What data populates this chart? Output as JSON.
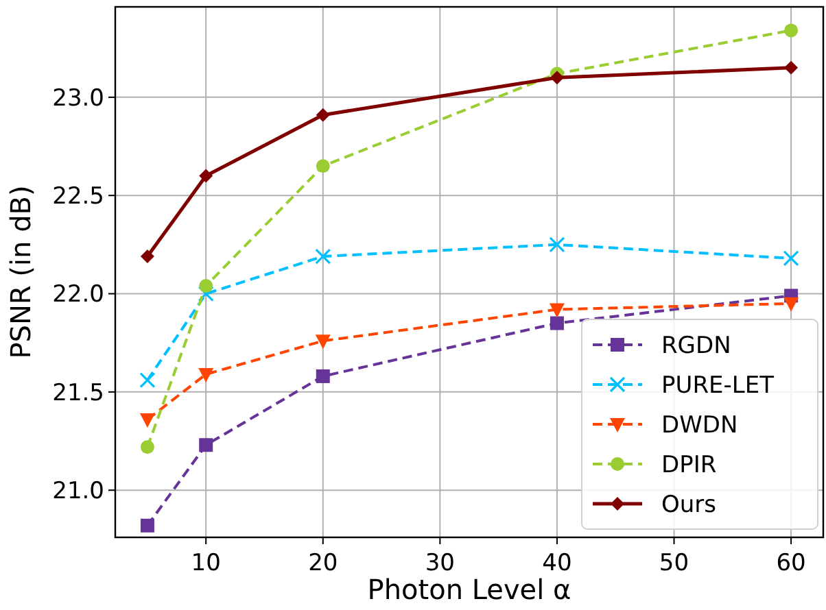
{
  "chart_data": {
    "type": "line",
    "xlabel": "Photon Level α",
    "ylabel": "PSNR (in dB)",
    "x": [
      5,
      10,
      20,
      40,
      60
    ],
    "xlim": [
      2.25,
      62.75
    ],
    "xticks": [
      10,
      20,
      30,
      40,
      50,
      60
    ],
    "ylim": [
      20.76,
      23.46
    ],
    "yticks": [
      {
        "value": 21,
        "label": "21.0"
      },
      21.5,
      {
        "value": 22,
        "label": "22.0"
      },
      22.5,
      {
        "value": 23,
        "label": "23.0"
      }
    ],
    "grid": true,
    "legend": "bottom right",
    "series": [
      {
        "name": "RGDN",
        "color": "#663399",
        "marker": "square",
        "line_style": "dashed",
        "values": [
          20.82,
          21.23,
          21.58,
          21.85,
          21.99
        ]
      },
      {
        "name": "PURE-LET",
        "color": "#00bfff",
        "marker": "cross",
        "line_style": "dashed",
        "values": [
          21.56,
          22.0,
          22.19,
          22.25,
          22.18
        ]
      },
      {
        "name": "DWDN",
        "color": "#ff4500",
        "marker": "triangle",
        "line_style": "dashed",
        "values": [
          21.36,
          21.59,
          21.76,
          21.92,
          21.95
        ]
      },
      {
        "name": "DPIR",
        "color": "#9acd32",
        "marker": "circle",
        "line_style": "dashed",
        "values": [
          21.22,
          22.04,
          22.65,
          23.12,
          23.34
        ]
      },
      {
        "name": "Ours",
        "color": "#800000",
        "marker": "diamond",
        "line_style": "solid",
        "values": [
          22.19,
          22.6,
          22.91,
          23.1,
          23.15
        ]
      }
    ]
  }
}
